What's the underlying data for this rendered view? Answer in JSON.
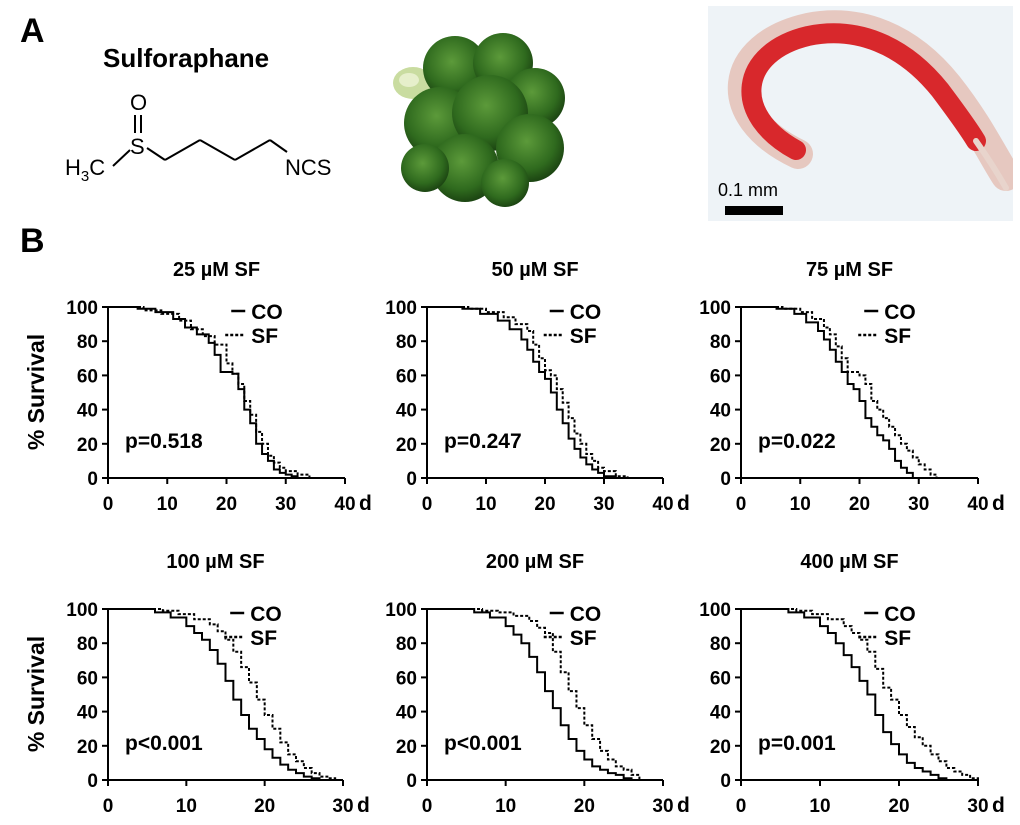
{
  "panel_a": {
    "letter": "A",
    "compound_name": "Sulforaphane",
    "formula_labels": {
      "o": "O",
      "s": "S",
      "h3c": "H",
      "h3c_sub": "3",
      "h3c_c": "C",
      "ncs": "NCS"
    },
    "scale_bar_label": "0.1 mm",
    "colors": {
      "broccoli": "#2f6a1e",
      "worm_stain": "#d8282c",
      "micrograph_bg": "#eef3f7"
    }
  },
  "panel_b": {
    "letter": "B",
    "ylabel": "% Survival",
    "x_unit": "d",
    "legend": {
      "co": "CO",
      "sf": "SF"
    }
  },
  "chart_data": [
    {
      "type": "line",
      "title": "25 µM SF",
      "annotation": "p=0.518",
      "xlim": [
        0,
        40
      ],
      "ylim": [
        0,
        100
      ],
      "xticks": [
        "0",
        "10",
        "20",
        "30",
        "40"
      ],
      "yticks": [
        "0",
        "20",
        "40",
        "60",
        "80",
        "100"
      ],
      "series": [
        {
          "name": "CO",
          "style": "solid",
          "x": [
            0,
            5,
            8,
            11,
            13,
            15,
            17,
            18,
            19,
            21,
            22,
            23,
            24,
            25,
            26,
            27,
            28,
            29,
            30,
            31,
            32
          ],
          "y": [
            100,
            99,
            97,
            93,
            88,
            84,
            79,
            72,
            62,
            61,
            52,
            40,
            32,
            20,
            14,
            10,
            5,
            3,
            2,
            1,
            0
          ]
        },
        {
          "name": "SF",
          "style": "dotted",
          "x": [
            0,
            6,
            9,
            12,
            14,
            16,
            18,
            20,
            21,
            22,
            23,
            24,
            25,
            26,
            27,
            28,
            29,
            30,
            32,
            34
          ],
          "y": [
            100,
            98,
            96,
            92,
            87,
            83,
            78,
            67,
            61,
            55,
            45,
            37,
            27,
            20,
            13,
            9,
            6,
            4,
            2,
            0
          ]
        }
      ]
    },
    {
      "type": "line",
      "title": "50 µM SF",
      "annotation": "p=0.247",
      "xlim": [
        0,
        40
      ],
      "ylim": [
        0,
        100
      ],
      "xticks": [
        "0",
        "10",
        "20",
        "30",
        "40"
      ],
      "yticks": [
        "0",
        "20",
        "40",
        "60",
        "80",
        "100"
      ],
      "series": [
        {
          "name": "CO",
          "style": "solid",
          "x": [
            0,
            6,
            9,
            12,
            14,
            16,
            17,
            18,
            19,
            20,
            21,
            22,
            23,
            24,
            25,
            26,
            27,
            28,
            29,
            30,
            32
          ],
          "y": [
            100,
            99,
            96,
            92,
            87,
            81,
            75,
            68,
            62,
            58,
            50,
            40,
            32,
            23,
            17,
            12,
            8,
            5,
            3,
            1,
            0
          ]
        },
        {
          "name": "SF",
          "style": "dotted",
          "x": [
            0,
            7,
            10,
            13,
            15,
            17,
            18,
            19,
            20,
            21,
            22,
            23,
            24,
            25,
            26,
            27,
            28,
            29,
            30,
            32,
            34
          ],
          "y": [
            100,
            99,
            97,
            94,
            90,
            86,
            78,
            70,
            63,
            60,
            52,
            44,
            35,
            26,
            20,
            14,
            10,
            6,
            4,
            1,
            0
          ]
        }
      ]
    },
    {
      "type": "line",
      "title": "75 µM SF",
      "annotation": "p=0.022",
      "xlim": [
        0,
        40
      ],
      "ylim": [
        0,
        100
      ],
      "xticks": [
        "0",
        "10",
        "20",
        "30",
        "40"
      ],
      "yticks": [
        "0",
        "20",
        "40",
        "60",
        "80",
        "100"
      ],
      "series": [
        {
          "name": "CO",
          "style": "solid",
          "x": [
            0,
            6,
            9,
            11,
            13,
            14,
            15,
            16,
            17,
            18,
            19,
            20,
            21,
            22,
            23,
            24,
            25,
            26,
            27,
            28,
            29
          ],
          "y": [
            100,
            99,
            96,
            91,
            86,
            81,
            75,
            68,
            62,
            55,
            52,
            45,
            35,
            30,
            25,
            22,
            17,
            10,
            6,
            3,
            0
          ]
        },
        {
          "name": "SF",
          "style": "dotted",
          "x": [
            0,
            7,
            10,
            12,
            14,
            15,
            16,
            17,
            18,
            20,
            21,
            22,
            23,
            24,
            25,
            26,
            27,
            28,
            29,
            30,
            31,
            32,
            33
          ],
          "y": [
            100,
            99,
            97,
            93,
            88,
            84,
            77,
            70,
            62,
            60,
            55,
            45,
            40,
            35,
            30,
            25,
            20,
            16,
            12,
            8,
            5,
            2,
            0
          ]
        }
      ]
    },
    {
      "type": "line",
      "title": "100 µM SF",
      "annotation": "p<0.001",
      "xlim": [
        0,
        30
      ],
      "ylim": [
        0,
        100
      ],
      "xticks": [
        "0",
        "10",
        "20",
        "30"
      ],
      "yticks": [
        "0",
        "20",
        "40",
        "60",
        "80",
        "100"
      ],
      "series": [
        {
          "name": "CO",
          "style": "solid",
          "x": [
            0,
            6,
            8,
            10,
            11,
            12,
            13,
            14,
            15,
            16,
            17,
            18,
            19,
            20,
            21,
            22,
            23,
            24,
            25,
            26,
            27
          ],
          "y": [
            100,
            98,
            95,
            90,
            86,
            82,
            76,
            68,
            58,
            47,
            38,
            30,
            24,
            18,
            13,
            9,
            6,
            4,
            2,
            1,
            0
          ]
        },
        {
          "name": "SF",
          "style": "dotted",
          "x": [
            0,
            7,
            9,
            11,
            13,
            14,
            15,
            16,
            17,
            18,
            19,
            20,
            21,
            22,
            23,
            24,
            25,
            26,
            27,
            28,
            29
          ],
          "y": [
            100,
            99,
            97,
            94,
            91,
            87,
            82,
            75,
            66,
            57,
            47,
            38,
            30,
            22,
            15,
            11,
            7,
            4,
            2,
            1,
            0
          ]
        }
      ]
    },
    {
      "type": "line",
      "title": "200 µM SF",
      "annotation": "p<0.001",
      "xlim": [
        0,
        30
      ],
      "ylim": [
        0,
        100
      ],
      "xticks": [
        "0",
        "10",
        "20",
        "30"
      ],
      "yticks": [
        "0",
        "20",
        "40",
        "60",
        "80",
        "100"
      ],
      "series": [
        {
          "name": "CO",
          "style": "solid",
          "x": [
            0,
            6,
            8,
            10,
            11,
            12,
            13,
            14,
            15,
            16,
            17,
            18,
            19,
            20,
            21,
            22,
            23,
            24,
            25,
            26
          ],
          "y": [
            100,
            98,
            95,
            90,
            85,
            80,
            72,
            63,
            52,
            42,
            32,
            24,
            17,
            12,
            8,
            6,
            4,
            3,
            1,
            0
          ]
        },
        {
          "name": "SF",
          "style": "dotted",
          "x": [
            0,
            7,
            9,
            11,
            13,
            14,
            15,
            16,
            17,
            18,
            19,
            20,
            21,
            22,
            23,
            24,
            25,
            26,
            27
          ],
          "y": [
            100,
            99,
            98,
            96,
            93,
            89,
            86,
            75,
            63,
            52,
            42,
            32,
            24,
            17,
            12,
            8,
            6,
            3,
            0
          ]
        }
      ]
    },
    {
      "type": "line",
      "title": "400 µM SF",
      "annotation": "p=0.001",
      "xlim": [
        0,
        30
      ],
      "ylim": [
        0,
        100
      ],
      "xticks": [
        "0",
        "10",
        "20",
        "30"
      ],
      "yticks": [
        "0",
        "20",
        "40",
        "60",
        "80",
        "100"
      ],
      "series": [
        {
          "name": "CO",
          "style": "solid",
          "x": [
            0,
            6,
            8,
            10,
            11,
            12,
            13,
            14,
            15,
            16,
            17,
            18,
            19,
            20,
            21,
            22,
            23,
            24,
            25,
            26
          ],
          "y": [
            100,
            98,
            95,
            90,
            86,
            80,
            73,
            66,
            58,
            50,
            38,
            28,
            21,
            15,
            10,
            7,
            5,
            3,
            1,
            0
          ]
        },
        {
          "name": "SF",
          "style": "dotted",
          "x": [
            0,
            7,
            9,
            11,
            13,
            14,
            15,
            16,
            17,
            18,
            19,
            20,
            21,
            22,
            23,
            24,
            25,
            26,
            27,
            28,
            29,
            30
          ],
          "y": [
            100,
            99,
            97,
            94,
            90,
            86,
            82,
            75,
            65,
            54,
            47,
            38,
            31,
            25,
            20,
            15,
            11,
            7,
            5,
            3,
            1,
            0
          ]
        }
      ]
    }
  ]
}
